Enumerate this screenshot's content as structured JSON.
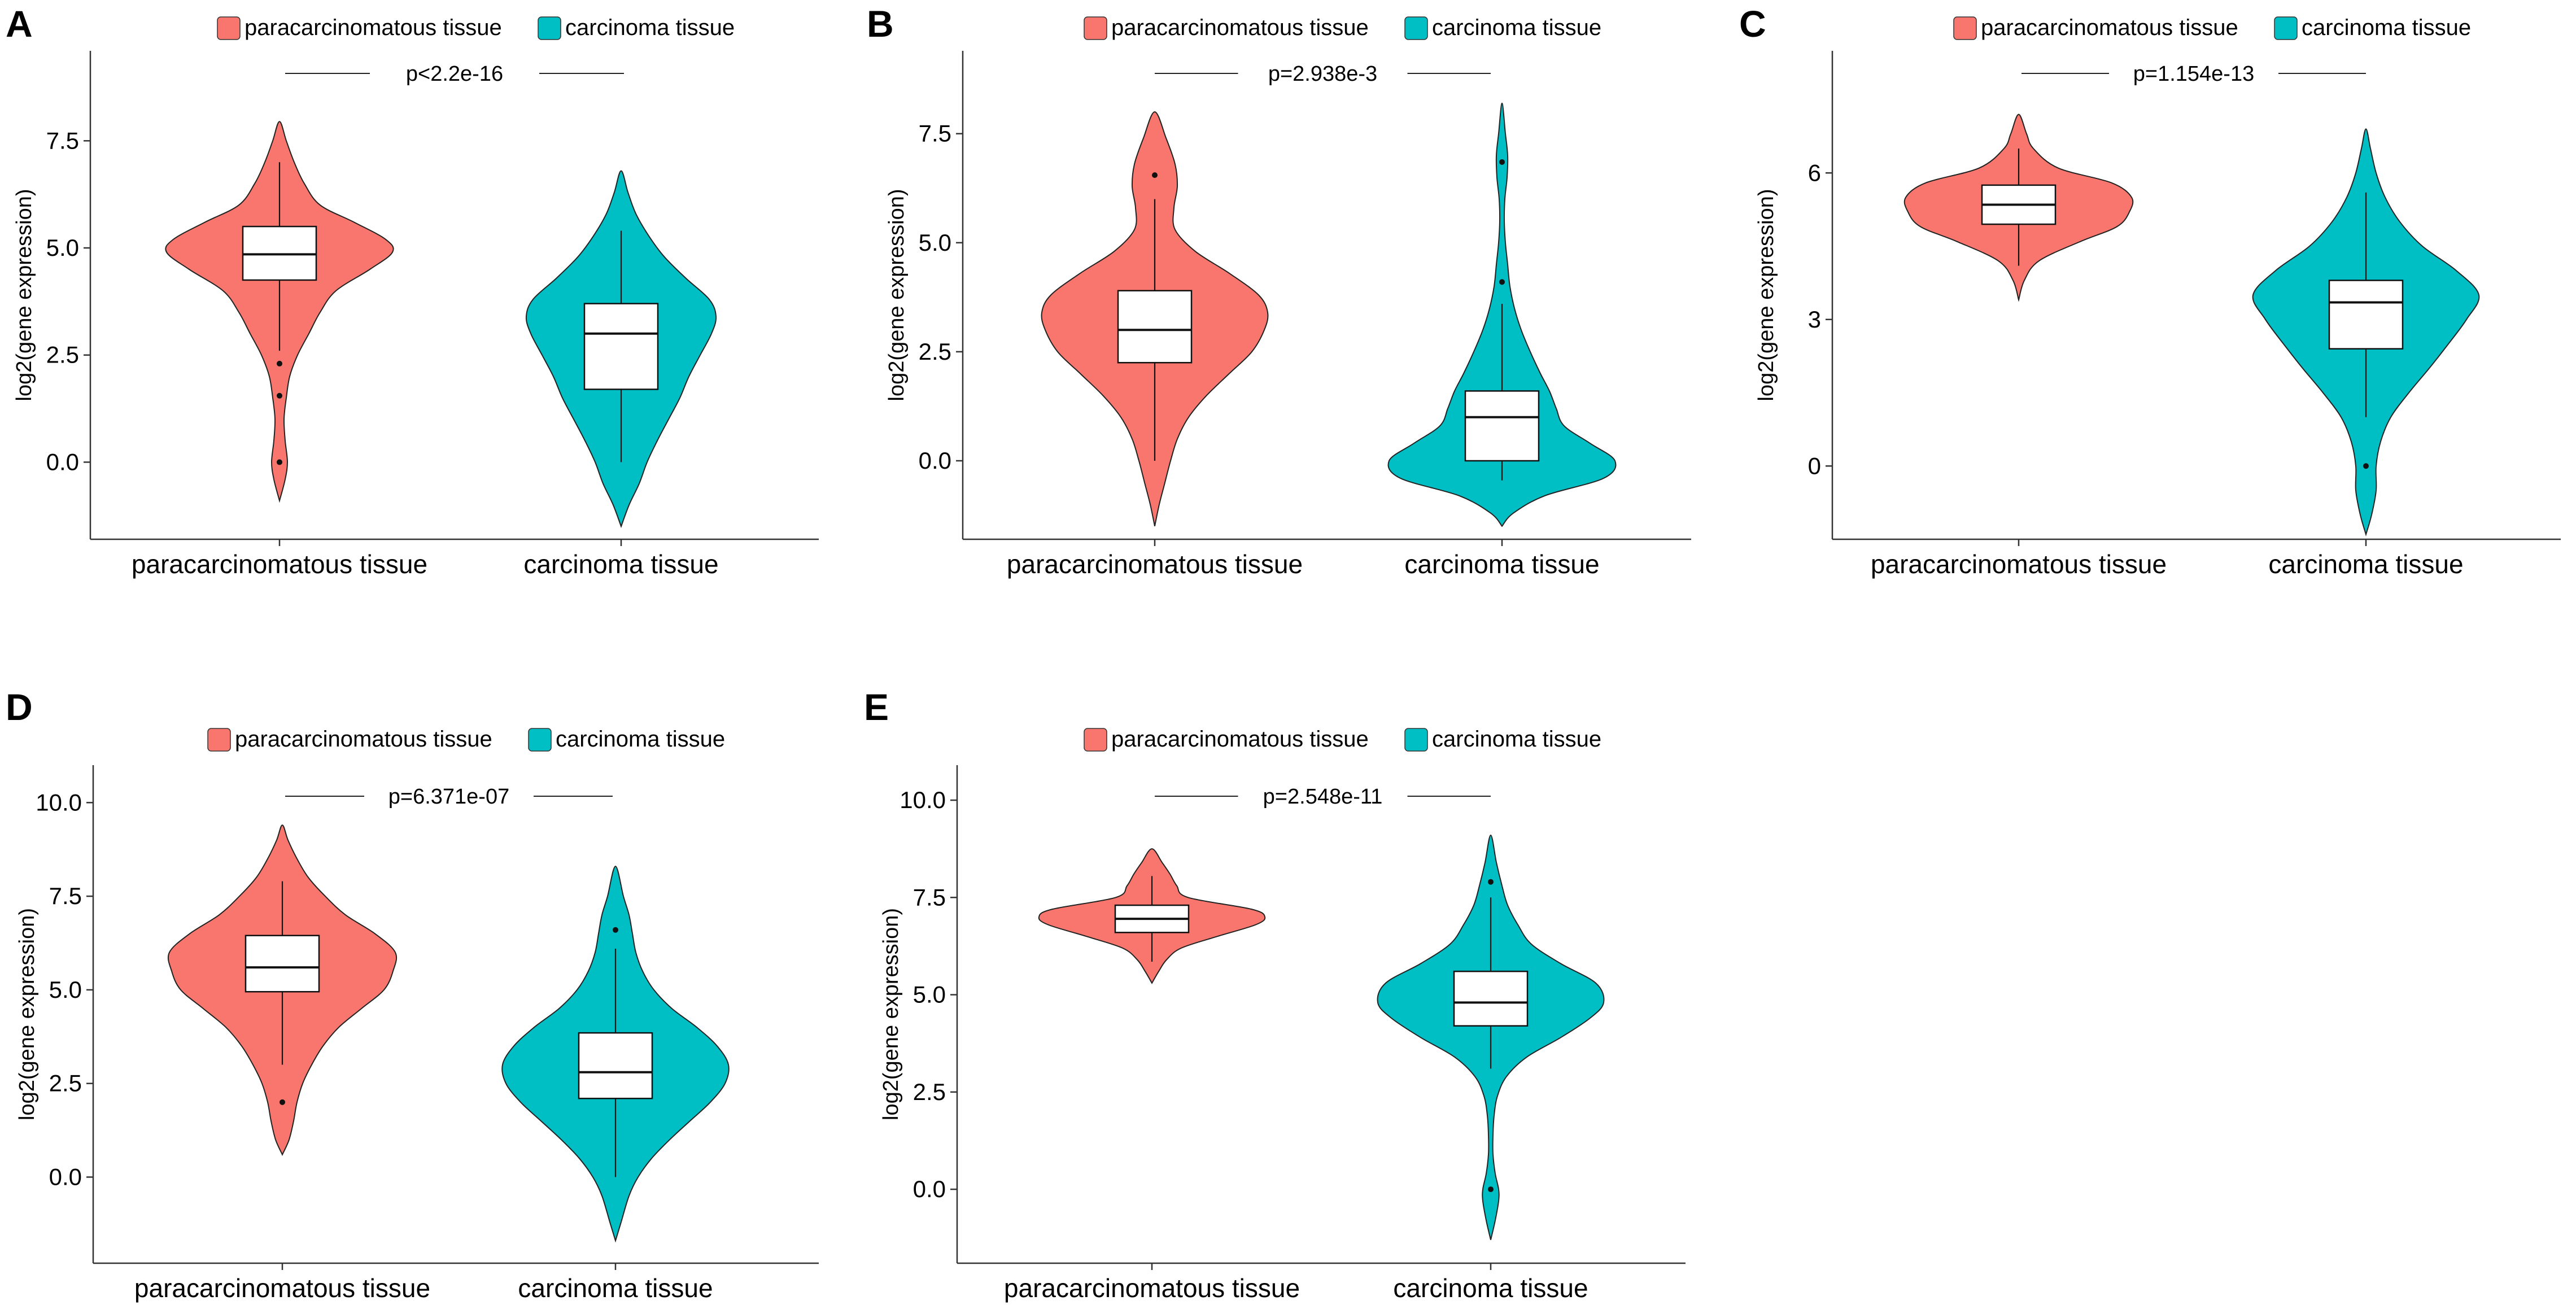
{
  "figure": {
    "colors": {
      "paracarcinomatous": "#F8766D",
      "carcinoma": "#00BFC4"
    },
    "legend_labels": [
      "paracarcinomatous tissue",
      "carcinoma tissue"
    ]
  },
  "chart_data": [
    {
      "panel": "A",
      "type": "violin",
      "ylabel": "log2(gene expression)",
      "categories": [
        "paracarcinomatous tissue",
        "carcinoma tissue"
      ],
      "ylim": [
        -1.8,
        9.6
      ],
      "yticks": [
        0,
        2.5,
        5,
        7.5
      ],
      "ytick_labels": [
        "0.0",
        "2.5",
        "5.0",
        "7.5"
      ],
      "p_value": "p<2.2e-16",
      "series": [
        {
          "name": "paracarcinomatous tissue",
          "box": {
            "q1": 4.25,
            "median": 4.85,
            "q3": 5.5,
            "whisker_low": 2.6,
            "whisker_high": 7.0
          },
          "outliers": [
            2.3,
            1.55,
            0.0
          ],
          "density": [
            [
              -0.9,
              0.0
            ],
            [
              -0.4,
              0.05
            ],
            [
              0.0,
              0.07
            ],
            [
              0.5,
              0.05
            ],
            [
              1.0,
              0.04
            ],
            [
              1.5,
              0.06
            ],
            [
              2.0,
              0.09
            ],
            [
              2.5,
              0.16
            ],
            [
              3.0,
              0.26
            ],
            [
              3.5,
              0.36
            ],
            [
              4.0,
              0.5
            ],
            [
              4.5,
              0.8
            ],
            [
              4.9,
              1.0
            ],
            [
              5.2,
              0.94
            ],
            [
              5.6,
              0.66
            ],
            [
              6.0,
              0.36
            ],
            [
              6.5,
              0.22
            ],
            [
              7.0,
              0.13
            ],
            [
              7.5,
              0.06
            ],
            [
              7.95,
              0.0
            ]
          ]
        },
        {
          "name": "carcinoma tissue",
          "box": {
            "q1": 1.7,
            "median": 3.0,
            "q3": 3.7,
            "whisker_low": 0.0,
            "whisker_high": 5.4
          },
          "outliers": [],
          "density": [
            [
              -1.5,
              0.0
            ],
            [
              -1.0,
              0.07
            ],
            [
              -0.5,
              0.16
            ],
            [
              0.0,
              0.23
            ],
            [
              0.5,
              0.32
            ],
            [
              1.0,
              0.42
            ],
            [
              1.5,
              0.52
            ],
            [
              2.0,
              0.6
            ],
            [
              2.5,
              0.7
            ],
            [
              3.0,
              0.8
            ],
            [
              3.4,
              0.84
            ],
            [
              3.8,
              0.78
            ],
            [
              4.3,
              0.57
            ],
            [
              4.8,
              0.38
            ],
            [
              5.3,
              0.24
            ],
            [
              5.8,
              0.13
            ],
            [
              6.3,
              0.06
            ],
            [
              6.8,
              0.0
            ]
          ]
        }
      ]
    },
    {
      "panel": "B",
      "type": "violin",
      "ylabel": "log2(gene expression)",
      "categories": [
        "paracarcinomatous tissue",
        "carcinoma tissue"
      ],
      "ylim": [
        -1.8,
        9.4
      ],
      "yticks": [
        0,
        2.5,
        5,
        7.5
      ],
      "ytick_labels": [
        "0.0",
        "2.5",
        "5.0",
        "7.5"
      ],
      "p_value": "p=2.938e-3",
      "series": [
        {
          "name": "paracarcinomatous tissue",
          "box": {
            "q1": 2.25,
            "median": 3.0,
            "q3": 3.9,
            "whisker_low": 0.0,
            "whisker_high": 6.0
          },
          "outliers": [
            6.55
          ],
          "density": [
            [
              -1.5,
              0.0
            ],
            [
              -1.0,
              0.04
            ],
            [
              -0.5,
              0.09
            ],
            [
              0.0,
              0.14
            ],
            [
              0.5,
              0.2
            ],
            [
              1.0,
              0.3
            ],
            [
              1.5,
              0.46
            ],
            [
              2.0,
              0.66
            ],
            [
              2.5,
              0.86
            ],
            [
              3.0,
              0.97
            ],
            [
              3.4,
              1.0
            ],
            [
              3.8,
              0.92
            ],
            [
              4.3,
              0.66
            ],
            [
              4.8,
              0.36
            ],
            [
              5.3,
              0.18
            ],
            [
              5.8,
              0.17
            ],
            [
              6.3,
              0.2
            ],
            [
              6.8,
              0.18
            ],
            [
              7.4,
              0.1
            ],
            [
              8.0,
              0.0
            ]
          ]
        },
        {
          "name": "carcinoma tissue",
          "box": {
            "q1": 0.0,
            "median": 1.0,
            "q3": 1.6,
            "whisker_low": -0.45,
            "whisker_high": 3.6
          },
          "outliers": [
            4.1,
            6.85
          ],
          "density": [
            [
              -1.5,
              0.0
            ],
            [
              -1.2,
              0.1
            ],
            [
              -0.8,
              0.38
            ],
            [
              -0.4,
              0.9
            ],
            [
              0.0,
              1.0
            ],
            [
              0.4,
              0.78
            ],
            [
              0.8,
              0.55
            ],
            [
              1.2,
              0.48
            ],
            [
              1.6,
              0.42
            ],
            [
              2.0,
              0.34
            ],
            [
              2.5,
              0.25
            ],
            [
              3.0,
              0.17
            ],
            [
              3.5,
              0.11
            ],
            [
              4.0,
              0.07
            ],
            [
              4.5,
              0.05
            ],
            [
              5.0,
              0.03
            ],
            [
              5.5,
              0.02
            ],
            [
              6.0,
              0.025
            ],
            [
              6.5,
              0.045
            ],
            [
              7.0,
              0.05
            ],
            [
              7.5,
              0.03
            ],
            [
              8.2,
              0.0
            ]
          ]
        }
      ]
    },
    {
      "panel": "C",
      "type": "violin",
      "ylabel": "log2(gene expression)",
      "categories": [
        "paracarcinomatous tissue",
        "carcinoma tissue"
      ],
      "ylim": [
        -1.5,
        8.5
      ],
      "yticks": [
        0,
        3,
        6
      ],
      "ytick_labels": [
        "0",
        "3",
        "6"
      ],
      "p_value": "p=1.154e-13",
      "series": [
        {
          "name": "paracarcinomatous tissue",
          "box": {
            "q1": 4.95,
            "median": 5.35,
            "q3": 5.75,
            "whisker_low": 4.1,
            "whisker_high": 6.5
          },
          "outliers": [],
          "density": [
            [
              3.4,
              0.0
            ],
            [
              3.8,
              0.05
            ],
            [
              4.2,
              0.18
            ],
            [
              4.6,
              0.55
            ],
            [
              4.9,
              0.87
            ],
            [
              5.2,
              0.98
            ],
            [
              5.5,
              1.0
            ],
            [
              5.8,
              0.82
            ],
            [
              6.1,
              0.35
            ],
            [
              6.5,
              0.13
            ],
            [
              6.8,
              0.07
            ],
            [
              7.2,
              0.0
            ]
          ]
        },
        {
          "name": "carcinoma tissue",
          "box": {
            "q1": 2.4,
            "median": 3.35,
            "q3": 3.8,
            "whisker_low": 1.0,
            "whisker_high": 5.6
          },
          "outliers": [
            0.0
          ],
          "density": [
            [
              -1.4,
              0.0
            ],
            [
              -1.0,
              0.05
            ],
            [
              -0.5,
              0.09
            ],
            [
              0.0,
              0.09
            ],
            [
              0.5,
              0.13
            ],
            [
              1.0,
              0.22
            ],
            [
              1.5,
              0.38
            ],
            [
              2.0,
              0.56
            ],
            [
              2.5,
              0.73
            ],
            [
              3.0,
              0.89
            ],
            [
              3.5,
              1.0
            ],
            [
              4.0,
              0.8
            ],
            [
              4.5,
              0.5
            ],
            [
              5.0,
              0.3
            ],
            [
              5.5,
              0.17
            ],
            [
              6.0,
              0.09
            ],
            [
              6.5,
              0.04
            ],
            [
              6.9,
              0.0
            ]
          ]
        }
      ]
    },
    {
      "panel": "D",
      "type": "violin",
      "ylabel": "log2(gene expression)",
      "categories": [
        "paracarcinomatous tissue",
        "carcinoma tissue"
      ],
      "ylim": [
        -2.3,
        11.0
      ],
      "yticks": [
        0,
        2.5,
        5,
        7.5,
        10
      ],
      "ytick_labels": [
        "0.0",
        "2.5",
        "5.0",
        "7.5",
        "10.0"
      ],
      "p_value": "p=6.371e-07",
      "series": [
        {
          "name": "paracarcinomatous tissue",
          "box": {
            "q1": 4.95,
            "median": 5.6,
            "q3": 6.45,
            "whisker_low": 3.0,
            "whisker_high": 7.9
          },
          "outliers": [
            2.0
          ],
          "density": [
            [
              0.6,
              0.0
            ],
            [
              1.0,
              0.06
            ],
            [
              1.5,
              0.1
            ],
            [
              2.0,
              0.13
            ],
            [
              2.5,
              0.18
            ],
            [
              3.0,
              0.26
            ],
            [
              3.5,
              0.36
            ],
            [
              4.0,
              0.5
            ],
            [
              4.5,
              0.7
            ],
            [
              5.0,
              0.9
            ],
            [
              5.5,
              0.98
            ],
            [
              6.0,
              1.0
            ],
            [
              6.5,
              0.82
            ],
            [
              7.0,
              0.56
            ],
            [
              7.5,
              0.38
            ],
            [
              8.0,
              0.23
            ],
            [
              8.5,
              0.13
            ],
            [
              9.0,
              0.05
            ],
            [
              9.4,
              0.0
            ]
          ]
        },
        {
          "name": "carcinoma tissue",
          "box": {
            "q1": 2.1,
            "median": 2.8,
            "q3": 3.85,
            "whisker_low": 0.0,
            "whisker_high": 6.1
          },
          "outliers": [
            6.6
          ],
          "density": [
            [
              -1.7,
              0.0
            ],
            [
              -1.2,
              0.05
            ],
            [
              -0.5,
              0.12
            ],
            [
              0.0,
              0.2
            ],
            [
              0.5,
              0.32
            ],
            [
              1.0,
              0.48
            ],
            [
              1.5,
              0.66
            ],
            [
              2.0,
              0.84
            ],
            [
              2.5,
              0.97
            ],
            [
              3.0,
              1.0
            ],
            [
              3.5,
              0.9
            ],
            [
              4.0,
              0.72
            ],
            [
              4.5,
              0.5
            ],
            [
              5.0,
              0.34
            ],
            [
              5.5,
              0.24
            ],
            [
              6.0,
              0.18
            ],
            [
              6.5,
              0.15
            ],
            [
              7.0,
              0.12
            ],
            [
              7.5,
              0.07
            ],
            [
              8.3,
              0.0
            ]
          ]
        }
      ]
    },
    {
      "panel": "E",
      "type": "violin",
      "ylabel": "log2(gene expression)",
      "categories": [
        "paracarcinomatous tissue",
        "carcinoma tissue"
      ],
      "ylim": [
        -1.9,
        10.9
      ],
      "yticks": [
        0,
        2.5,
        5,
        7.5,
        10
      ],
      "ytick_labels": [
        "0.0",
        "2.5",
        "5.0",
        "7.5",
        "10.0"
      ],
      "p_value": "p=2.548e-11",
      "series": [
        {
          "name": "paracarcinomatous tissue",
          "box": {
            "q1": 6.6,
            "median": 6.95,
            "q3": 7.3,
            "whisker_low": 5.85,
            "whisker_high": 8.05
          },
          "outliers": [],
          "density": [
            [
              5.3,
              0.0
            ],
            [
              5.6,
              0.06
            ],
            [
              5.9,
              0.13
            ],
            [
              6.2,
              0.26
            ],
            [
              6.5,
              0.58
            ],
            [
              6.8,
              0.92
            ],
            [
              7.0,
              1.0
            ],
            [
              7.2,
              0.88
            ],
            [
              7.5,
              0.32
            ],
            [
              7.8,
              0.22
            ],
            [
              8.1,
              0.16
            ],
            [
              8.4,
              0.09
            ],
            [
              8.75,
              0.0
            ]
          ]
        },
        {
          "name": "carcinoma tissue",
          "box": {
            "q1": 4.2,
            "median": 4.8,
            "q3": 5.6,
            "whisker_low": 3.1,
            "whisker_high": 7.5
          },
          "outliers": [
            7.9,
            0.0
          ],
          "density": [
            [
              -1.3,
              0.0
            ],
            [
              -0.8,
              0.04
            ],
            [
              -0.3,
              0.07
            ],
            [
              0.0,
              0.07
            ],
            [
              0.4,
              0.04
            ],
            [
              0.9,
              0.02
            ],
            [
              1.4,
              0.02
            ],
            [
              1.9,
              0.03
            ],
            [
              2.4,
              0.06
            ],
            [
              2.9,
              0.14
            ],
            [
              3.4,
              0.32
            ],
            [
              3.9,
              0.62
            ],
            [
              4.4,
              0.88
            ],
            [
              4.8,
              1.0
            ],
            [
              5.3,
              0.93
            ],
            [
              5.8,
              0.62
            ],
            [
              6.3,
              0.36
            ],
            [
              6.8,
              0.24
            ],
            [
              7.3,
              0.15
            ],
            [
              7.8,
              0.1
            ],
            [
              8.4,
              0.05
            ],
            [
              9.1,
              0.0
            ]
          ]
        }
      ]
    }
  ]
}
